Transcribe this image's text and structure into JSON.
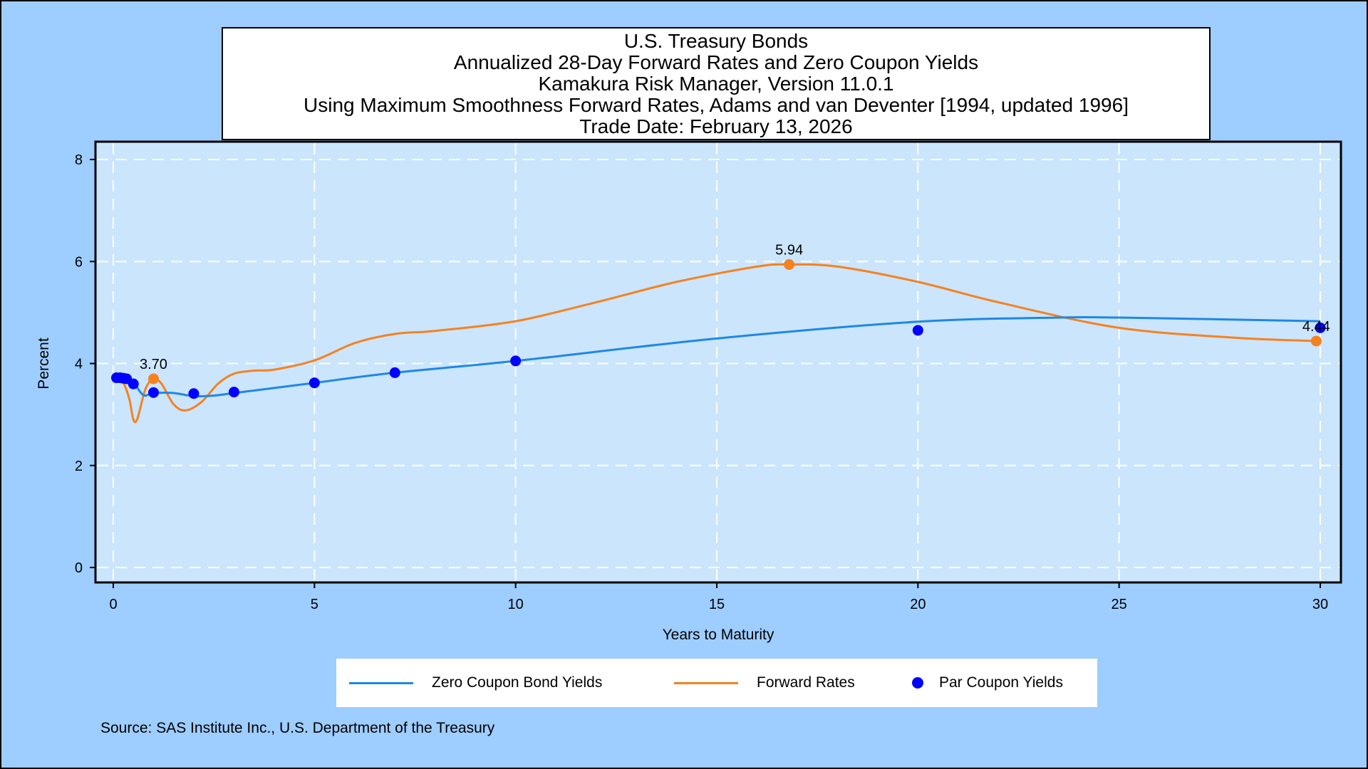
{
  "title_lines": [
    "U.S. Treasury Bonds",
    "Annualized 28-Day Forward Rates and Zero Coupon Yields",
    "Kamakura Risk Manager, Version 11.0.1",
    "Using Maximum Smoothness Forward Rates, Adams and van Deventer [1994, updated 1996]",
    "Trade Date: February 13, 2026"
  ],
  "source_note": "Source: SAS Institute Inc., U.S. Department of the Treasury",
  "colors": {
    "frame_background": "#9ecdff",
    "plot_background": "#cbe5fd",
    "zero_coupon": "#1e88e5",
    "forward": "#f5821f",
    "par": "#0000ff",
    "grid": "#ffffff"
  },
  "chart_data": {
    "type": "line",
    "xlabel": "Years to Maturity",
    "ylabel": "Percent",
    "xlim": [
      0,
      30
    ],
    "ylim": [
      0,
      8
    ],
    "xticks": [
      0,
      5,
      10,
      15,
      20,
      25,
      30
    ],
    "yticks": [
      0,
      2,
      4,
      6,
      8
    ],
    "grid": true,
    "legend_position": "bottom",
    "series": [
      {
        "name": "Zero Coupon Bond Yields",
        "type": "line",
        "x": [
          0.08,
          0.25,
          0.5,
          0.75,
          1,
          1.5,
          2,
          2.5,
          3,
          4,
          5,
          7,
          10,
          15,
          20,
          23.5,
          25,
          30
        ],
        "y": [
          3.72,
          3.7,
          3.62,
          3.38,
          3.42,
          3.42,
          3.36,
          3.37,
          3.42,
          3.52,
          3.62,
          3.82,
          4.05,
          4.49,
          4.82,
          4.9,
          4.9,
          4.83
        ]
      },
      {
        "name": "Forward Rates",
        "type": "line",
        "x": [
          0.08,
          0.25,
          0.4,
          0.5,
          0.6,
          0.8,
          1,
          1.2,
          1.5,
          1.8,
          2.2,
          2.6,
          3,
          3.5,
          4,
          5,
          6,
          7,
          8,
          10,
          12,
          14,
          16,
          16.8,
          18,
          20,
          22,
          25,
          28,
          30
        ],
        "y": [
          3.72,
          3.62,
          3.3,
          2.9,
          2.92,
          3.5,
          3.7,
          3.6,
          3.2,
          3.08,
          3.25,
          3.6,
          3.8,
          3.86,
          3.88,
          4.06,
          4.4,
          4.58,
          4.64,
          4.83,
          5.2,
          5.6,
          5.9,
          5.94,
          5.9,
          5.6,
          5.2,
          4.7,
          4.5,
          4.44
        ]
      },
      {
        "name": "Par Coupon Yields",
        "type": "scatter",
        "x": [
          0.08,
          0.17,
          0.25,
          0.33,
          0.5,
          1,
          2,
          3,
          5,
          7,
          10,
          20,
          30
        ],
        "y": [
          3.72,
          3.72,
          3.71,
          3.7,
          3.6,
          3.43,
          3.41,
          3.44,
          3.62,
          3.82,
          4.05,
          4.65,
          4.7
        ]
      }
    ],
    "annotations": [
      {
        "series": "Forward Rates",
        "x": 1,
        "y": 3.7,
        "label": "3.70"
      },
      {
        "series": "Forward Rates",
        "x": 16.8,
        "y": 5.94,
        "label": "5.94"
      },
      {
        "series": "Forward Rates",
        "x": 29.9,
        "y": 4.44,
        "label": "4.44"
      }
    ]
  }
}
